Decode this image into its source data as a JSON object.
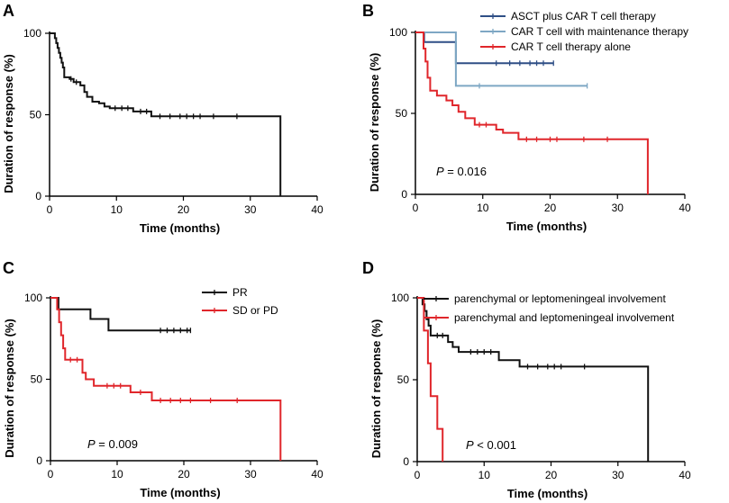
{
  "colors": {
    "black": "#111111",
    "darkblue": "#2f4f86",
    "lightblue": "#7ea7c4",
    "red": "#e0262b"
  },
  "chart_data": [
    {
      "panel": "A",
      "type": "line",
      "xlabel": "Time (months)",
      "ylabel": "Duration of  response (%)",
      "xlim": [
        0,
        40
      ],
      "ylim": [
        0,
        100
      ],
      "xticks": [
        "0",
        "10",
        "20",
        "30",
        "40"
      ],
      "yticks": [
        "0",
        "50",
        "100"
      ],
      "pvalue": "",
      "series": [
        {
          "name": "",
          "color": "#111111",
          "steps": [
            [
              0,
              100
            ],
            [
              0.8,
              100
            ],
            [
              0.8,
              97
            ],
            [
              1.0,
              97
            ],
            [
              1.0,
              94
            ],
            [
              1.2,
              94
            ],
            [
              1.2,
              91
            ],
            [
              1.4,
              91
            ],
            [
              1.4,
              88
            ],
            [
              1.6,
              88
            ],
            [
              1.6,
              85
            ],
            [
              1.8,
              85
            ],
            [
              1.8,
              82
            ],
            [
              2.0,
              82
            ],
            [
              2.0,
              79
            ],
            [
              2.2,
              79
            ],
            [
              2.2,
              73
            ],
            [
              3.0,
              73
            ],
            [
              3.0,
              72
            ],
            [
              3.6,
              72
            ],
            [
              3.6,
              70
            ],
            [
              4.6,
              70
            ],
            [
              4.6,
              68
            ],
            [
              5.2,
              68
            ],
            [
              5.2,
              64
            ],
            [
              5.6,
              64
            ],
            [
              5.6,
              61
            ],
            [
              6.4,
              61
            ],
            [
              6.4,
              58
            ],
            [
              7.4,
              58
            ],
            [
              7.4,
              57
            ],
            [
              8.2,
              57
            ],
            [
              8.2,
              55
            ],
            [
              9.0,
              55
            ],
            [
              9.0,
              54
            ],
            [
              12.5,
              54
            ],
            [
              12.5,
              52
            ],
            [
              15.2,
              52
            ],
            [
              15.2,
              49
            ],
            [
              34.5,
              49
            ],
            [
              34.5,
              0
            ]
          ],
          "censors": [
            [
              3.2,
              72
            ],
            [
              4.0,
              70
            ],
            [
              9.8,
              54
            ],
            [
              10.8,
              54
            ],
            [
              11.7,
              54
            ],
            [
              13.6,
              52
            ],
            [
              14.5,
              52
            ],
            [
              16.5,
              49
            ],
            [
              18.0,
              49
            ],
            [
              19.5,
              49
            ],
            [
              20.5,
              49
            ],
            [
              21.5,
              49
            ],
            [
              22.5,
              49
            ],
            [
              24.5,
              49
            ],
            [
              28.0,
              49
            ]
          ]
        }
      ],
      "legend": []
    },
    {
      "panel": "B",
      "type": "line",
      "xlabel": "Time (months)",
      "ylabel": "Duration of  response (%)",
      "xlim": [
        0,
        40
      ],
      "ylim": [
        0,
        100
      ],
      "xticks": [
        "0",
        "10",
        "20",
        "30",
        "40"
      ],
      "yticks": [
        "0",
        "50",
        "100"
      ],
      "pvalue": "0.016",
      "pvalue_prefix": "P",
      "pvalue_op": "=",
      "series": [
        {
          "name": "ASCT plus CAR T cell therapy",
          "color": "#2f4f86",
          "steps": [
            [
              0,
              100
            ],
            [
              1.3,
              100
            ],
            [
              1.3,
              94
            ],
            [
              6.0,
              94
            ],
            [
              6.0,
              81
            ],
            [
              20.5,
              81
            ]
          ],
          "censors": [
            [
              12.0,
              81
            ],
            [
              14.0,
              81
            ],
            [
              15.5,
              81
            ],
            [
              17.0,
              81
            ],
            [
              18.0,
              81
            ],
            [
              19.0,
              81
            ],
            [
              20.5,
              81
            ]
          ]
        },
        {
          "name": "CAR T cell with maintenance therapy",
          "color": "#7ea7c4",
          "steps": [
            [
              0,
              100
            ],
            [
              6.0,
              100
            ],
            [
              6.0,
              67
            ],
            [
              25.5,
              67
            ]
          ],
          "censors": [
            [
              9.5,
              67
            ],
            [
              25.5,
              67
            ]
          ]
        },
        {
          "name": "CAR T cell therapy alone",
          "color": "#e0262b",
          "steps": [
            [
              0,
              100
            ],
            [
              1.2,
              100
            ],
            [
              1.2,
              90
            ],
            [
              1.5,
              90
            ],
            [
              1.5,
              82
            ],
            [
              1.8,
              82
            ],
            [
              1.8,
              72
            ],
            [
              2.2,
              72
            ],
            [
              2.2,
              64
            ],
            [
              3.2,
              64
            ],
            [
              3.2,
              61
            ],
            [
              4.6,
              61
            ],
            [
              4.6,
              58
            ],
            [
              5.5,
              58
            ],
            [
              5.5,
              55
            ],
            [
              6.4,
              55
            ],
            [
              6.4,
              51
            ],
            [
              7.4,
              51
            ],
            [
              7.4,
              47
            ],
            [
              8.8,
              47
            ],
            [
              8.8,
              43
            ],
            [
              12.0,
              43
            ],
            [
              12.0,
              40
            ],
            [
              13.0,
              40
            ],
            [
              13.0,
              38
            ],
            [
              15.3,
              38
            ],
            [
              15.3,
              34
            ],
            [
              34.5,
              34
            ],
            [
              34.5,
              0
            ]
          ],
          "censors": [
            [
              9.5,
              43
            ],
            [
              10.5,
              43
            ],
            [
              16.5,
              34
            ],
            [
              18.0,
              34
            ],
            [
              20.0,
              34
            ],
            [
              21.0,
              34
            ],
            [
              25.0,
              34
            ],
            [
              28.5,
              34
            ]
          ]
        }
      ],
      "legend": [
        "ASCT plus CAR T cell therapy",
        "CAR T cell with maintenance therapy",
        "CAR T cell therapy alone"
      ]
    },
    {
      "panel": "C",
      "type": "line",
      "xlabel": "Time (months)",
      "ylabel": "Duration of  response (%)",
      "xlim": [
        0,
        40
      ],
      "ylim": [
        0,
        100
      ],
      "xticks": [
        "0",
        "10",
        "20",
        "30",
        "40"
      ],
      "yticks": [
        "0",
        "50",
        "100"
      ],
      "pvalue": "0.009",
      "pvalue_prefix": "P",
      "pvalue_op": "=",
      "series": [
        {
          "name": "PR",
          "color": "#111111",
          "steps": [
            [
              0,
              100
            ],
            [
              1.2,
              100
            ],
            [
              1.2,
              93
            ],
            [
              6.0,
              93
            ],
            [
              6.0,
              87
            ],
            [
              8.7,
              87
            ],
            [
              8.7,
              80
            ],
            [
              21.0,
              80
            ]
          ],
          "censors": [
            [
              16.5,
              80
            ],
            [
              17.5,
              80
            ],
            [
              18.5,
              80
            ],
            [
              19.5,
              80
            ],
            [
              20.5,
              80
            ],
            [
              21.0,
              80
            ]
          ]
        },
        {
          "name": "SD or PD",
          "color": "#e0262b",
          "steps": [
            [
              0,
              100
            ],
            [
              1.0,
              100
            ],
            [
              1.0,
              93
            ],
            [
              1.3,
              93
            ],
            [
              1.3,
              85
            ],
            [
              1.6,
              85
            ],
            [
              1.6,
              77
            ],
            [
              1.9,
              77
            ],
            [
              1.9,
              69
            ],
            [
              2.2,
              69
            ],
            [
              2.2,
              62
            ],
            [
              4.8,
              62
            ],
            [
              4.8,
              54
            ],
            [
              5.3,
              54
            ],
            [
              5.3,
              50
            ],
            [
              6.5,
              50
            ],
            [
              6.5,
              46
            ],
            [
              12.0,
              46
            ],
            [
              12.0,
              42
            ],
            [
              15.2,
              42
            ],
            [
              15.2,
              37
            ],
            [
              34.5,
              37
            ],
            [
              34.5,
              0
            ]
          ],
          "censors": [
            [
              3.0,
              62
            ],
            [
              4.0,
              62
            ],
            [
              8.5,
              46
            ],
            [
              9.5,
              46
            ],
            [
              10.5,
              46
            ],
            [
              13.5,
              42
            ],
            [
              16.5,
              37
            ],
            [
              18.0,
              37
            ],
            [
              19.5,
              37
            ],
            [
              21.0,
              37
            ],
            [
              24.0,
              37
            ],
            [
              28.0,
              37
            ]
          ]
        }
      ],
      "legend": [
        "PR",
        "SD or PD"
      ]
    },
    {
      "panel": "D",
      "type": "line",
      "xlabel": "Time (months)",
      "ylabel": "Duration of  response (%)",
      "xlim": [
        0,
        40
      ],
      "ylim": [
        0,
        100
      ],
      "xticks": [
        "0",
        "10",
        "20",
        "30",
        "40"
      ],
      "yticks": [
        "0",
        "50",
        "100"
      ],
      "pvalue": "0.001",
      "pvalue_prefix": "P",
      "pvalue_op": "<",
      "series": [
        {
          "name": "parenchymal or leptomeningeal involvement",
          "color": "#111111",
          "steps": [
            [
              0,
              100
            ],
            [
              0.8,
              100
            ],
            [
              0.8,
              96
            ],
            [
              1.1,
              96
            ],
            [
              1.1,
              92
            ],
            [
              1.4,
              92
            ],
            [
              1.4,
              87
            ],
            [
              1.7,
              87
            ],
            [
              1.7,
              83
            ],
            [
              2.0,
              83
            ],
            [
              2.0,
              77
            ],
            [
              4.6,
              77
            ],
            [
              4.6,
              73
            ],
            [
              5.3,
              73
            ],
            [
              5.3,
              70
            ],
            [
              6.2,
              70
            ],
            [
              6.2,
              67
            ],
            [
              12.2,
              67
            ],
            [
              12.2,
              62
            ],
            [
              15.3,
              62
            ],
            [
              15.3,
              58
            ],
            [
              34.5,
              58
            ],
            [
              34.5,
              0
            ]
          ],
          "censors": [
            [
              3.0,
              77
            ],
            [
              3.8,
              77
            ],
            [
              8.0,
              67
            ],
            [
              9.0,
              67
            ],
            [
              10.0,
              67
            ],
            [
              11.0,
              67
            ],
            [
              16.5,
              58
            ],
            [
              18.0,
              58
            ],
            [
              19.5,
              58
            ],
            [
              20.5,
              58
            ],
            [
              21.5,
              58
            ],
            [
              25.0,
              58
            ]
          ]
        },
        {
          "name": "parenchymal and leptomeningeal involvement",
          "color": "#e0262b",
          "steps": [
            [
              0,
              100
            ],
            [
              1.0,
              100
            ],
            [
              1.0,
              80
            ],
            [
              1.6,
              80
            ],
            [
              1.6,
              60
            ],
            [
              2.0,
              60
            ],
            [
              2.0,
              40
            ],
            [
              3.0,
              40
            ],
            [
              3.0,
              20
            ],
            [
              3.8,
              20
            ],
            [
              3.8,
              0
            ]
          ],
          "censors": []
        }
      ],
      "legend": [
        "parenchymal or leptomeningeal involvement",
        "parenchymal and leptomeningeal involvement"
      ]
    }
  ]
}
